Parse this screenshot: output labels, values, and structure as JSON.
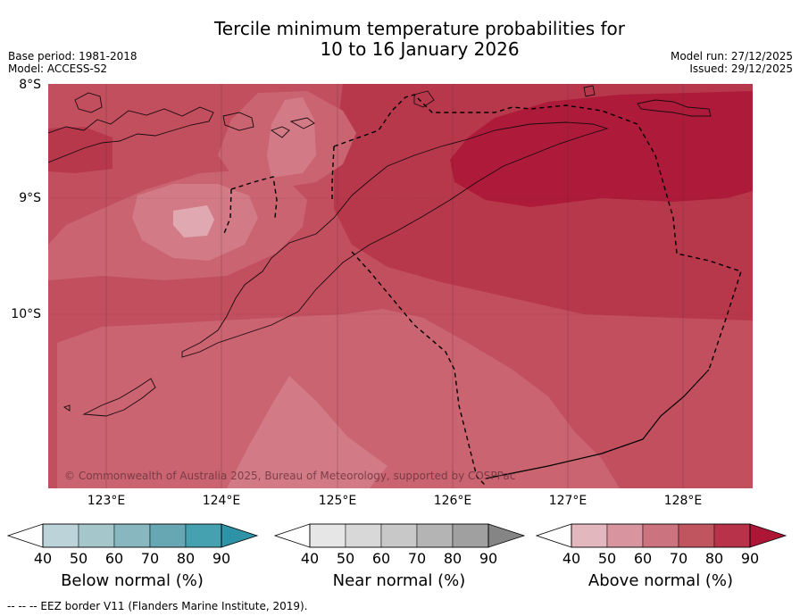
{
  "title_line1": "Tercile minimum temperature probabilities for",
  "title_line2": "10 to 16 January 2026",
  "base_period": "Base period: 1981-2018",
  "model": "Model: ACCESS-S2",
  "model_run": "Model run: 27/12/2025",
  "issued": "Issued: 29/12/2025",
  "lat_labels": [
    "8°S",
    "9°S",
    "10°S"
  ],
  "lon_labels": [
    "123°E",
    "124°E",
    "125°E",
    "126°E",
    "127°E",
    "128°E"
  ],
  "copyright": "© Commonwealth of Australia 2025, Bureau of Meteorology, supported by COSPPac",
  "colorbars": [
    {
      "title": "Below normal (%)",
      "ticks": [
        "40",
        "50",
        "60",
        "70",
        "80",
        "90"
      ],
      "colors": [
        "#bcd3d9",
        "#a5c7cc",
        "#88b7c0",
        "#66a7b3",
        "#45a0b0",
        "#2e93a6"
      ]
    },
    {
      "title": "Near normal (%)",
      "ticks": [
        "40",
        "50",
        "60",
        "70",
        "80",
        "90"
      ],
      "colors": [
        "#e6e6e6",
        "#d8d8d8",
        "#c8c8c8",
        "#b4b4b4",
        "#a0a0a0",
        "#858585"
      ]
    },
    {
      "title": "Above normal (%)",
      "ticks": [
        "40",
        "50",
        "60",
        "70",
        "80",
        "90"
      ],
      "colors": [
        "#e3b7be",
        "#d8949f",
        "#cb737f",
        "#c05560",
        "#b83249",
        "#ae1637"
      ]
    }
  ],
  "footer": "--  --  -- EEZ border V11 (Flanders Marine Institute, 2019).",
  "map_colors": {
    "c50": "#d27b86",
    "c60": "#c96470",
    "c70": "#c24f5e",
    "c80": "#b8384b",
    "c90": "#ae1a39",
    "c40": "#e0a8b0"
  }
}
